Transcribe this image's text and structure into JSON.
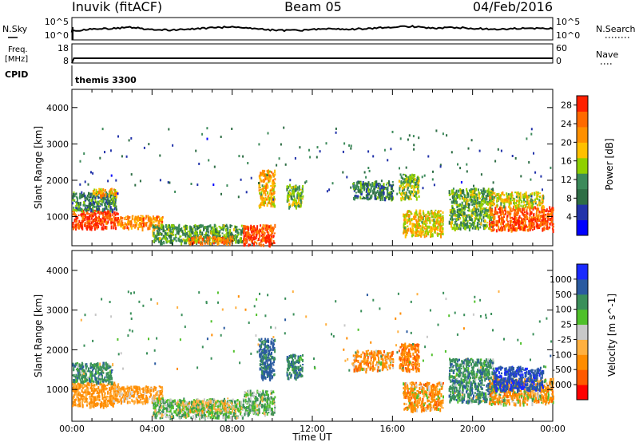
{
  "header": {
    "station": "Inuvik (fitACF)",
    "beam": "Beam 05",
    "date": "04/Feb/2016"
  },
  "left_labels": {
    "nsky": "N.Sky",
    "freq_line1": "Freq.",
    "freq_line2": "[MHz]",
    "cpid": "CPID"
  },
  "right_labels": {
    "nsearch": "N.Search",
    "nave": "Nave"
  },
  "mode_text": "themis 3300",
  "colors": {
    "power_scale": [
      "#0000ff",
      "#2233aa",
      "#2e6e45",
      "#3c8a5a",
      "#8fd000",
      "#ffc000",
      "#ff9000",
      "#ff6a00",
      "#ff2000"
    ],
    "velocity_scale": [
      "#ff0000",
      "#ff5a00",
      "#ff8c00",
      "#ffb040",
      "#c8c8c8",
      "#4fc02a",
      "#3a8f5a",
      "#2a5aa0",
      "#1a2aff"
    ]
  },
  "chart_data": [
    {
      "type": "line",
      "panel": "noise",
      "x_range": [
        "00:00",
        "24:00"
      ],
      "left_axis": {
        "label": "N.Sky",
        "ticks": [
          "10^5",
          "10^0"
        ]
      },
      "right_axis": {
        "label": "N.Search",
        "ticks": [
          "10^5",
          "10^0"
        ]
      },
      "series": [
        {
          "name": "N.Sky",
          "color": "#000000",
          "x": [
            0,
            1,
            2,
            3,
            4,
            5,
            6,
            7,
            8,
            9,
            10,
            11,
            12,
            13,
            14,
            15,
            16,
            17,
            18,
            19,
            20,
            21,
            22,
            23,
            24
          ],
          "y_log10": [
            2.0,
            2.4,
            2.6,
            2.8,
            2.3,
            2.2,
            2.4,
            2.7,
            2.9,
            2.6,
            2.2,
            2.1,
            2.3,
            2.5,
            2.4,
            2.6,
            2.9,
            3.0,
            2.6,
            2.8,
            2.6,
            2.4,
            2.5,
            2.6,
            2.6
          ]
        }
      ]
    },
    {
      "type": "line",
      "panel": "frequency",
      "left_axis": {
        "label": "Freq. [MHz]",
        "ticks": [
          18,
          8
        ]
      },
      "right_axis": {
        "label": "Nave",
        "ticks": [
          60,
          0
        ]
      },
      "series": [
        {
          "name": "Freq.",
          "color": "#000000",
          "x": [
            0,
            0.1,
            24
          ],
          "y": [
            8,
            10.5,
            10.5
          ]
        }
      ]
    },
    {
      "type": "heatmap",
      "panel": "power",
      "xlabel": "",
      "ylabel": "Slant Range [km]",
      "ylim": [
        200,
        4500
      ],
      "yticks": [
        1000,
        2000,
        3000,
        4000
      ],
      "colorbar": {
        "label": "Power [dB]",
        "ticks": [
          4,
          8,
          12,
          16,
          20,
          24,
          28
        ],
        "range": [
          0,
          30
        ]
      },
      "regions": [
        {
          "x": [
            0.0,
            2.3
          ],
          "y": [
            700,
            1200
          ],
          "value": 27
        },
        {
          "x": [
            0.0,
            2.2
          ],
          "y": [
            1200,
            1700
          ],
          "value": 10
        },
        {
          "x": [
            1.0,
            2.2
          ],
          "y": [
            1600,
            1800
          ],
          "value": 20
        },
        {
          "x": [
            2.2,
            4.5
          ],
          "y": [
            700,
            1050
          ],
          "value": 22
        },
        {
          "x": [
            4.0,
            8.5
          ],
          "y": [
            300,
            800
          ],
          "value": 12
        },
        {
          "x": [
            5.8,
            8.0
          ],
          "y": [
            280,
            480
          ],
          "value": 24
        },
        {
          "x": [
            8.5,
            10.1
          ],
          "y": [
            250,
            800
          ],
          "value": 27
        },
        {
          "x": [
            9.3,
            10.1
          ],
          "y": [
            1300,
            2300
          ],
          "value": 20
        },
        {
          "x": [
            10.7,
            11.5
          ],
          "y": [
            1300,
            1900
          ],
          "value": 14
        },
        {
          "x": [
            14.0,
            16.0
          ],
          "y": [
            1500,
            2000
          ],
          "value": 10
        },
        {
          "x": [
            16.3,
            17.3
          ],
          "y": [
            1500,
            2200
          ],
          "value": 14
        },
        {
          "x": [
            16.5,
            18.5
          ],
          "y": [
            500,
            1200
          ],
          "value": 18
        },
        {
          "x": [
            18.8,
            21.0
          ],
          "y": [
            700,
            1800
          ],
          "value": 13
        },
        {
          "x": [
            20.8,
            24.0
          ],
          "y": [
            650,
            1300
          ],
          "value": 26
        },
        {
          "x": [
            20.8,
            23.5
          ],
          "y": [
            1300,
            1700
          ],
          "value": 17
        }
      ]
    },
    {
      "type": "heatmap",
      "panel": "velocity",
      "xlabel": "Time UT",
      "ylabel": "Slant Range [km]",
      "xticks": [
        "00:00",
        "04:00",
        "08:00",
        "12:00",
        "16:00",
        "20:00",
        "00:00"
      ],
      "ylim": [
        200,
        4500
      ],
      "yticks": [
        1000,
        2000,
        3000,
        4000
      ],
      "colorbar": {
        "label": "Velocity [m s^-1]",
        "ticks": [
          "1000",
          "500",
          "100",
          "25",
          "-25",
          "-100",
          "-500",
          "-1000"
        ]
      },
      "regions": [
        {
          "x": [
            0.0,
            2.3
          ],
          "y": [
            600,
            1200
          ],
          "value": -150
        },
        {
          "x": [
            0.0,
            2.0
          ],
          "y": [
            1200,
            1700
          ],
          "value": 300
        },
        {
          "x": [
            2.0,
            4.5
          ],
          "y": [
            700,
            1100
          ],
          "value": -120
        },
        {
          "x": [
            4.0,
            8.5
          ],
          "y": [
            300,
            800
          ],
          "value": 60
        },
        {
          "x": [
            5.5,
            8.0
          ],
          "y": [
            450,
            750
          ],
          "value": 0
        },
        {
          "x": [
            8.5,
            10.1
          ],
          "y": [
            400,
            1000
          ],
          "value": 80
        },
        {
          "x": [
            9.3,
            10.1
          ],
          "y": [
            1300,
            2300
          ],
          "value": 600
        },
        {
          "x": [
            10.7,
            11.5
          ],
          "y": [
            1300,
            1900
          ],
          "value": 400
        },
        {
          "x": [
            14.0,
            16.0
          ],
          "y": [
            1500,
            2000
          ],
          "value": -300
        },
        {
          "x": [
            16.3,
            17.3
          ],
          "y": [
            1500,
            2200
          ],
          "value": -400
        },
        {
          "x": [
            16.5,
            18.5
          ],
          "y": [
            500,
            1200
          ],
          "value": -250
        },
        {
          "x": [
            18.8,
            21.0
          ],
          "y": [
            700,
            1800
          ],
          "value": 300
        },
        {
          "x": [
            20.8,
            24.0
          ],
          "y": [
            650,
            1300
          ],
          "value": -200
        },
        {
          "x": [
            21.0,
            23.5
          ],
          "y": [
            1000,
            1600
          ],
          "value": 900
        }
      ]
    }
  ]
}
